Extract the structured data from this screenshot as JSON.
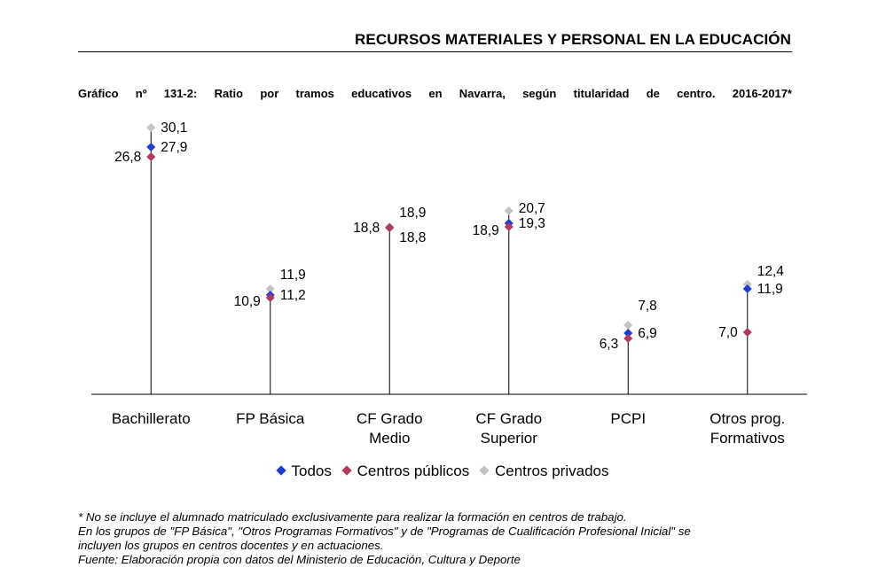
{
  "header": {
    "title": "RECURSOS MATERIALES Y PERSONAL EN LA EDUCACIÓN"
  },
  "chart_title": "Gráfico nº 131-2: Ratio por tramos educativos en Navarra, según titularidad de centro. 2016-2017*",
  "chart_data": {
    "type": "scatter",
    "title": "Gráfico nº 131-2: Ratio por tramos educativos en Navarra, según titularidad de centro. 2016-2017*",
    "categories": [
      [
        "Bachillerato"
      ],
      [
        "FP Básica"
      ],
      [
        "CF Grado",
        "Medio"
      ],
      [
        "CF Grado",
        "Superior"
      ],
      [
        "PCPI"
      ],
      [
        "Otros prog.",
        "Formativos"
      ]
    ],
    "series": [
      {
        "name": "Todos",
        "values": [
          27.9,
          11.2,
          18.8,
          19.3,
          6.9,
          11.9
        ],
        "labels": [
          "27,9",
          "11,2",
          "18,8",
          "19,3",
          "6,9",
          "11,9"
        ]
      },
      {
        "name": "Centros públicos",
        "values": [
          26.8,
          10.9,
          18.8,
          18.9,
          6.3,
          7.0
        ],
        "labels": [
          "26,8",
          "10,9",
          "18,8",
          "18,9",
          "6,3",
          "7,0"
        ]
      },
      {
        "name": "Centros privados",
        "values": [
          30.1,
          11.9,
          18.9,
          20.7,
          7.8,
          12.4
        ],
        "labels": [
          "30,1",
          "11,9",
          "18,9",
          "20,7",
          "7,8",
          "12,4"
        ]
      }
    ],
    "ylim": [
      0,
      32
    ],
    "grid": false,
    "legend_position": "bottom",
    "colors": {
      "Todos": "#1f3bd6",
      "Centros públicos": "#b03a5b",
      "Centros privados": "#c3c3c3"
    }
  },
  "legend": [
    {
      "label": "Todos",
      "color": "#1f3bd6"
    },
    {
      "label": "Centros públicos",
      "color": "#b03a5b"
    },
    {
      "label": "Centros privados",
      "color": "#c3c3c3"
    }
  ],
  "notes": [
    "* No se incluye el alumnado matriculado exclusivamente para realizar la formación en centros de trabajo.",
    "En los grupos de \"FP Básica\", \"Otros Programas Formativos\" y de \"Programas de Cualificación Profesional Inicial\" se",
    "incluyen los grupos en centros docentes y en actuaciones.",
    "Fuente: Elaboración propia con datos del Ministerio de Educación, Cultura y Deporte"
  ]
}
